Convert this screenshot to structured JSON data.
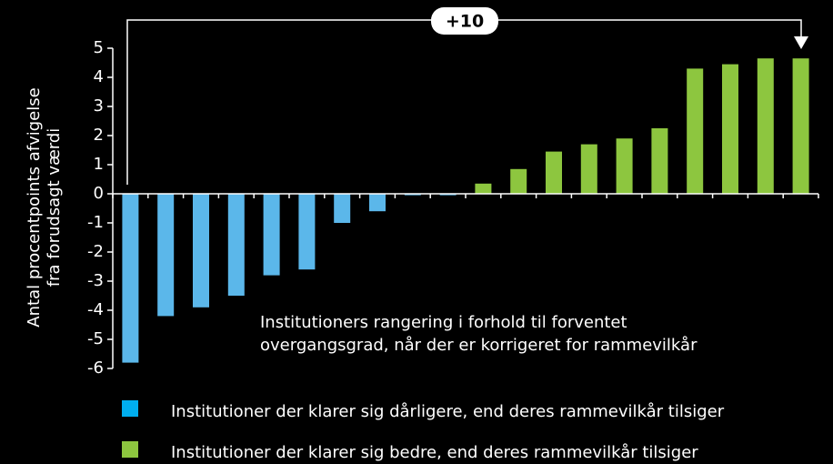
{
  "chart_data": {
    "type": "bar",
    "categories": [
      null,
      null,
      null,
      null,
      null,
      null,
      null,
      null,
      null,
      null,
      null,
      null,
      null,
      null,
      null,
      null,
      null,
      null,
      null,
      null
    ],
    "series": [
      {
        "name": "Institutioner der klarer sig dårligere, end deres rammevilkår tilsiger",
        "color": "#5bb7ea",
        "values": [
          -5.8,
          -4.2,
          -3.9,
          -3.5,
          -2.8,
          -2.6,
          -1.0,
          -0.6,
          -0.05,
          -0.05,
          null,
          null,
          null,
          null,
          null,
          null,
          null,
          null,
          null,
          null
        ]
      },
      {
        "name": "Institutioner der klarer sig bedre, end deres rammevilkår tilsiger",
        "color": "#8dc63f",
        "values": [
          null,
          null,
          null,
          null,
          null,
          null,
          null,
          null,
          null,
          null,
          0.35,
          0.85,
          1.45,
          1.7,
          1.9,
          2.25,
          4.3,
          4.45,
          4.65,
          4.65
        ]
      }
    ],
    "legend_colors": [
      "#00aeef",
      "#8dc63f"
    ],
    "ylabel": [
      "Antal procentpoints afvigelse",
      "fra forudsagt værdi"
    ],
    "ylim": [
      -6,
      5
    ],
    "yticks": [
      -6,
      -5,
      -4,
      -3,
      -2,
      -1,
      0,
      1,
      2,
      3,
      4,
      5
    ],
    "annotations": {
      "bracket": "+10",
      "note": [
        "Institutioners rangering i forhold til forventet",
        "overgangsgrad, når der er korrigeret for rammevilkår"
      ]
    }
  }
}
